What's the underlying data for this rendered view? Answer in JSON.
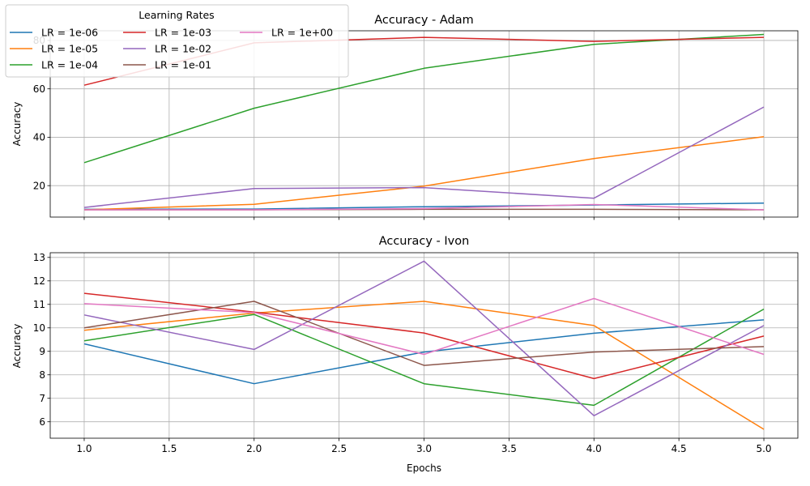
{
  "chart_data": [
    {
      "type": "line",
      "title": "Accuracy - Adam",
      "xlabel": "",
      "ylabel": "Accuracy",
      "x": [
        1,
        2,
        3,
        4,
        5
      ],
      "xlim": [
        0.8,
        5.2
      ],
      "ylim": [
        7,
        84
      ],
      "xticks": [
        "1.0",
        "1.5",
        "2.0",
        "2.5",
        "3.0",
        "3.5",
        "4.0",
        "4.5",
        "5.0"
      ],
      "yticks": [
        20,
        40,
        60,
        80
      ],
      "show_x_tick_labels": false,
      "grid": true,
      "series": [
        {
          "name": "LR = 1e-06",
          "color": "#1f77b4",
          "values": [
            10.2,
            10.3,
            11.3,
            12.0,
            12.8
          ]
        },
        {
          "name": "LR = 1e-05",
          "color": "#ff7f0e",
          "values": [
            10.0,
            12.3,
            19.8,
            31.2,
            40.2
          ]
        },
        {
          "name": "LR = 1e-04",
          "color": "#2ca02c",
          "values": [
            29.5,
            52.0,
            68.5,
            78.4,
            82.5
          ]
        },
        {
          "name": "LR = 1e-03",
          "color": "#d62728",
          "values": [
            61.5,
            79.0,
            81.3,
            79.6,
            81.3
          ]
        },
        {
          "name": "LR = 1e-02",
          "color": "#9467bd",
          "values": [
            11.0,
            18.8,
            19.2,
            14.8,
            52.5
          ]
        },
        {
          "name": "LR = 1e-01",
          "color": "#8c564b",
          "values": [
            10.0,
            10.0,
            10.2,
            10.2,
            10.0
          ]
        },
        {
          "name": "LR = 1e+00",
          "color": "#e377c2",
          "values": [
            10.0,
            10.0,
            10.5,
            12.2,
            10.0
          ]
        }
      ]
    },
    {
      "type": "line",
      "title": "Accuracy - Ivon",
      "xlabel": "Epochs",
      "ylabel": "Accuracy",
      "x": [
        1,
        2,
        3,
        4,
        5
      ],
      "xlim": [
        0.8,
        5.2
      ],
      "ylim": [
        5.3,
        13.2
      ],
      "xticks": [
        "1.0",
        "1.5",
        "2.0",
        "2.5",
        "3.0",
        "3.5",
        "4.0",
        "4.5",
        "5.0"
      ],
      "yticks": [
        6,
        7,
        8,
        9,
        10,
        11,
        12,
        13
      ],
      "show_x_tick_labels": true,
      "grid": true,
      "series": [
        {
          "name": "LR = 1e-06",
          "color": "#1f77b4",
          "values": [
            9.32,
            7.62,
            8.97,
            9.77,
            10.34
          ]
        },
        {
          "name": "LR = 1e-05",
          "color": "#ff7f0e",
          "values": [
            9.9,
            10.63,
            11.13,
            10.1,
            5.68
          ]
        },
        {
          "name": "LR = 1e-04",
          "color": "#2ca02c",
          "values": [
            9.45,
            10.57,
            7.62,
            6.7,
            10.8
          ]
        },
        {
          "name": "LR = 1e-03",
          "color": "#d62728",
          "values": [
            11.47,
            10.67,
            9.78,
            7.84,
            9.65
          ]
        },
        {
          "name": "LR = 1e-02",
          "color": "#9467bd",
          "values": [
            10.55,
            9.08,
            12.84,
            6.26,
            10.1
          ]
        },
        {
          "name": "LR = 1e-01",
          "color": "#8c564b",
          "values": [
            10.0,
            11.13,
            8.4,
            8.97,
            9.2
          ]
        },
        {
          "name": "LR = 1e+00",
          "color": "#e377c2",
          "values": [
            11.03,
            10.65,
            8.87,
            11.25,
            8.87
          ]
        }
      ]
    }
  ],
  "legend": {
    "title": "Learning Rates",
    "placement": "top-left",
    "columns": 3
  }
}
